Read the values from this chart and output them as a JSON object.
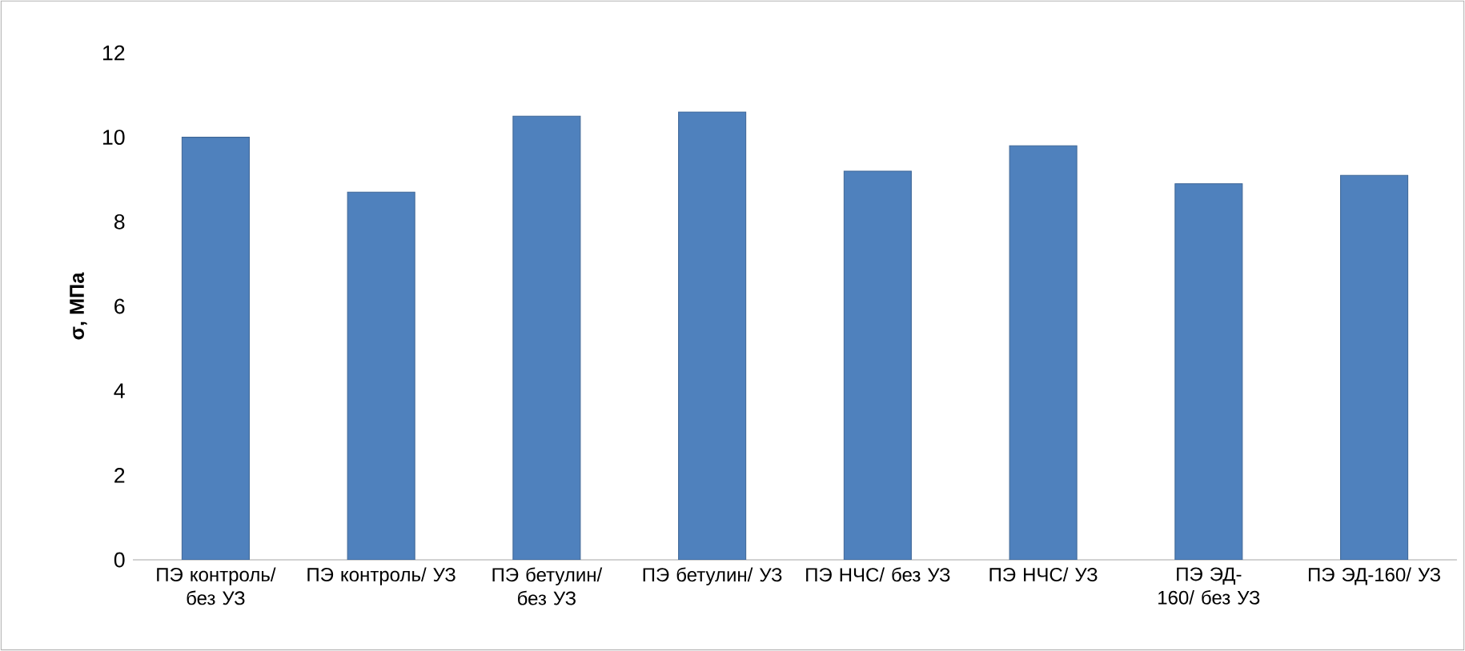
{
  "chart_data": {
    "type": "bar",
    "ylabel": "σ, МПа",
    "categories": [
      "ПЭ контроль/ без УЗ",
      "ПЭ контроль/ УЗ",
      "ПЭ бетулин/ без УЗ",
      "ПЭ бетулин/ УЗ",
      "ПЭ НЧС/ без УЗ",
      "ПЭ НЧС/ УЗ",
      "ПЭ ЭД-160/ без УЗ",
      "ПЭ ЭД-160/ УЗ"
    ],
    "values": [
      10.0,
      8.7,
      10.5,
      10.6,
      9.2,
      9.8,
      8.9,
      9.1
    ],
    "color": "#4f81bd",
    "ylim": [
      0,
      12
    ],
    "yticks": [
      0,
      2,
      4,
      6,
      8,
      10,
      12
    ]
  }
}
